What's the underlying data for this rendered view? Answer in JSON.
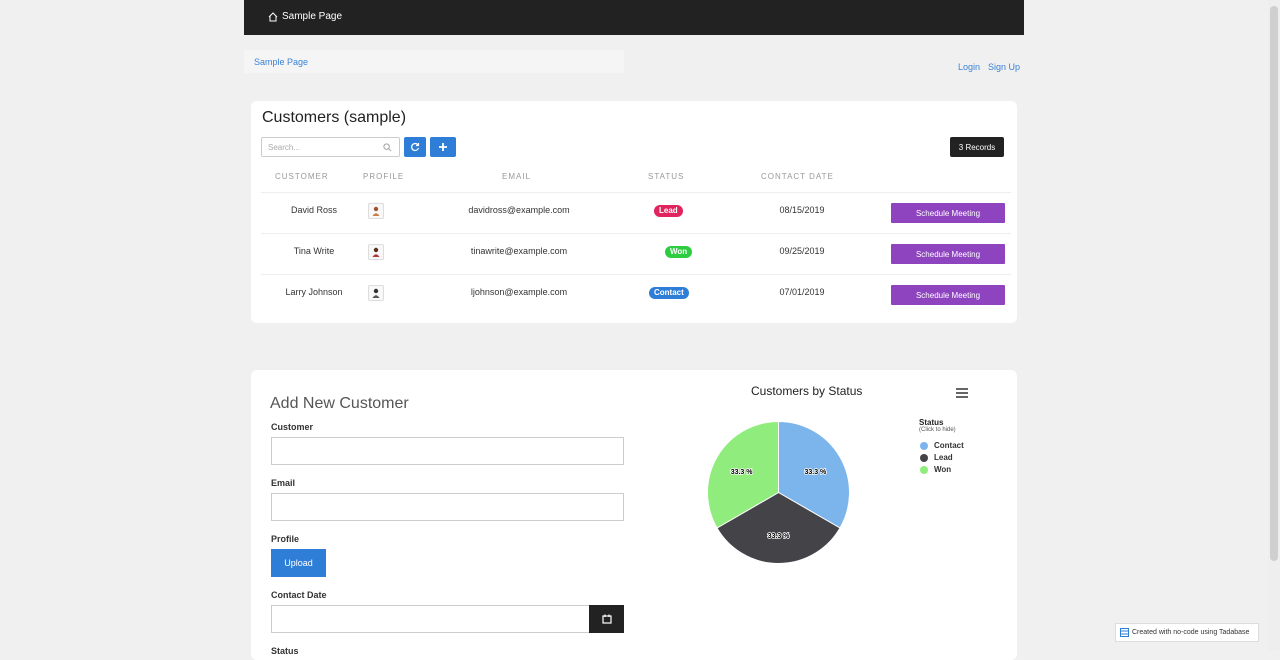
{
  "nav": {
    "brand": "Sample Page"
  },
  "breadcrumb": {
    "item": "Sample Page"
  },
  "auth": {
    "login": "Login",
    "signup": "Sign Up"
  },
  "customers": {
    "title": "Customers (sample)",
    "search_placeholder": "Search...",
    "records": "3 Records",
    "columns": [
      "CUSTOMER",
      "PROFILE",
      "EMAIL",
      "STATUS",
      "CONTACT DATE"
    ],
    "rows": [
      {
        "name": "David Ross",
        "email": "davidross@example.com",
        "status": "Lead",
        "status_color": "#e0245e",
        "date": "08/15/2019",
        "action": "Schedule Meeting"
      },
      {
        "name": "Tina Write",
        "email": "tinawrite@example.com",
        "status": "Won",
        "status_color": "#2ecc40",
        "date": "09/25/2019",
        "action": "Schedule Meeting"
      },
      {
        "name": "Larry Johnson",
        "email": "ljohnson@example.com",
        "status": "Contact",
        "status_color": "#2e7ed8",
        "date": "07/01/2019",
        "action": "Schedule Meeting"
      }
    ]
  },
  "form": {
    "title": "Add New Customer",
    "customer_label": "Customer",
    "email_label": "Email",
    "profile_label": "Profile",
    "upload_label": "Upload",
    "contact_date_label": "Contact Date",
    "status_label": "Status"
  },
  "chart_data": {
    "type": "pie",
    "title": "Customers by Status",
    "legend_title": "Status",
    "legend_subtitle": "(Click to hide)",
    "categories": [
      "Contact",
      "Lead",
      "Won"
    ],
    "values": [
      33.3,
      33.3,
      33.3
    ],
    "labels": [
      "33.3 %",
      "33.3 %",
      "33.3 %"
    ],
    "colors": [
      "#7cb5ec",
      "#434348",
      "#90ed7d"
    ],
    "legend_position": "right"
  },
  "footer": {
    "tadabase": "Created with no-code using Tadabase"
  }
}
